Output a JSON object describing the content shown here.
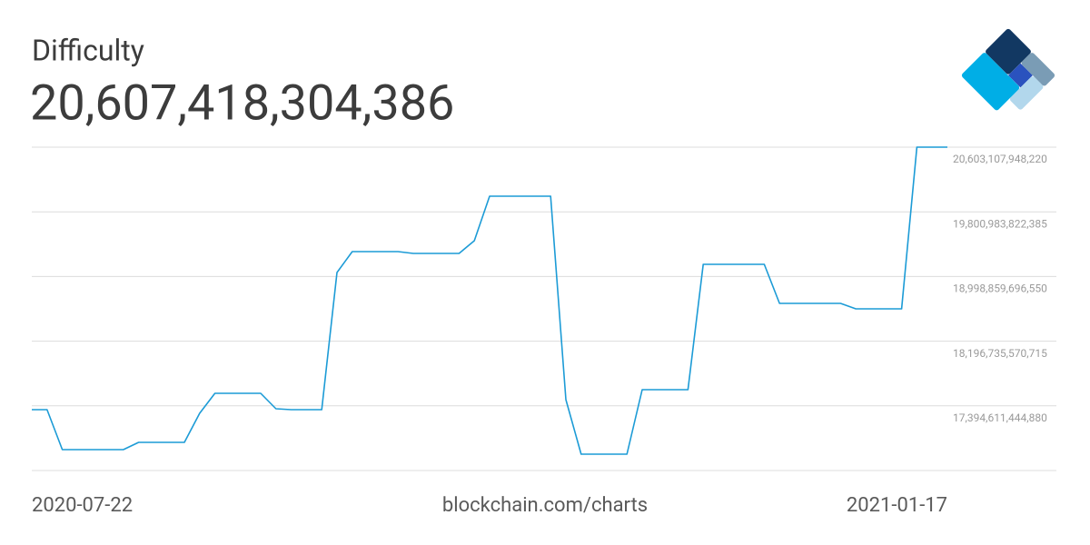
{
  "chart_data": {
    "type": "line",
    "title": "Difficulty",
    "current_value": "20,607,418,304,386",
    "source": "blockchain.com/charts",
    "categories": [
      "2020-07-22",
      null,
      null,
      null,
      null,
      null,
      null,
      null,
      null,
      null,
      null,
      null,
      null,
      null,
      null,
      null,
      null,
      null,
      null,
      null,
      null,
      null,
      null,
      null,
      null,
      null,
      null,
      null,
      null,
      null,
      null,
      null,
      null,
      null,
      null,
      null,
      null,
      null,
      null,
      null,
      null,
      null,
      null,
      null,
      null,
      null,
      null,
      null,
      null,
      null,
      null,
      null,
      null,
      null,
      null,
      null,
      null,
      null,
      null,
      null,
      "2021-01-17"
    ],
    "series": [
      {
        "name": "Difficulty",
        "color": "#1c9bd6",
        "values": [
          17347235000000,
          17347235000000,
          16851600000000,
          16851600000000,
          16851600000000,
          16851600000000,
          16851600000000,
          16941727000000,
          16941727000000,
          16941727000000,
          16941727000000,
          17302172000000,
          17550079000000,
          17550079000000,
          17550079000000,
          17550079000000,
          17358601000000,
          17347235000000,
          17347235000000,
          17347235000000,
          19048429000000,
          19307542000000,
          19307542000000,
          19307542000000,
          19307542000000,
          19285010000000,
          19285010000000,
          19285010000000,
          19285010000000,
          19442732000000,
          19994715000000,
          19994715000000,
          19994715000000,
          19994715000000,
          19994715000000,
          17471218000000,
          16795272000000,
          16795272000000,
          16795272000000,
          16795272000000,
          17595143000000,
          17595143000000,
          17595143000000,
          17595143000000,
          19149821000000,
          19149821000000,
          19149821000000,
          19149821000000,
          19149821000000,
          18665392000000,
          18665392000000,
          18665392000000,
          18665392000000,
          18665392000000,
          18597797000000,
          18597797000000,
          18597797000000,
          18597797000000,
          20603107948220,
          20603107948220,
          20603107948220
        ]
      }
    ],
    "ylim": [
      16592487319045,
      20603107948220
    ],
    "yticks": [
      {
        "value": 17394611444880,
        "label": "17,394,611,444,880"
      },
      {
        "value": 18196735570715,
        "label": "18,196,735,570,715"
      },
      {
        "value": 18998859696550,
        "label": "18,998,859,696,550"
      },
      {
        "value": 19800983822385,
        "label": "19,800,983,822,385"
      },
      {
        "value": 20603107948220,
        "label": "20,603,107,948,220"
      }
    ],
    "grid": true
  }
}
